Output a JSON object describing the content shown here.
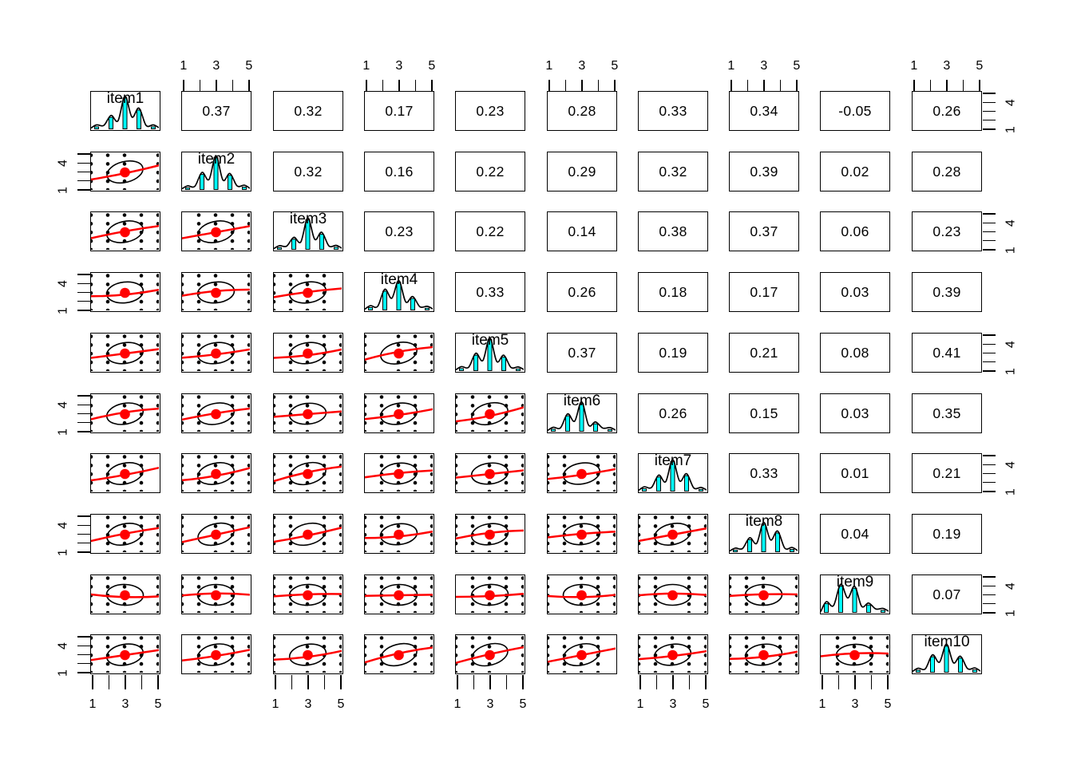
{
  "chart_data": {
    "type": "scatter-matrix",
    "title": "",
    "description": "pairs.panels correlation matrix: diagonal = histograms with density curves, upper triangle = Pearson correlations, lower triangle = scatterplots with correlation ellipse, red loess line and red mean point",
    "variables": [
      "item1",
      "item2",
      "item3",
      "item4",
      "item5",
      "item6",
      "item7",
      "item8",
      "item9",
      "item10"
    ],
    "correlations_upper": [
      [
        0.37,
        0.32,
        0.17,
        0.23,
        0.28,
        0.33,
        0.34,
        -0.05,
        0.26
      ],
      [
        0.32,
        0.16,
        0.22,
        0.29,
        0.32,
        0.39,
        0.02,
        0.28
      ],
      [
        0.23,
        0.22,
        0.14,
        0.38,
        0.37,
        0.06,
        0.23
      ],
      [
        0.33,
        0.26,
        0.18,
        0.17,
        0.03,
        0.39
      ],
      [
        0.37,
        0.19,
        0.21,
        0.08,
        0.41
      ],
      [
        0.26,
        0.15,
        0.03,
        0.35
      ],
      [
        0.33,
        0.01,
        0.21
      ],
      [
        0.04,
        0.19
      ],
      [
        0.07
      ]
    ],
    "histogram_heights": [
      [
        0.06,
        0.34,
        0.92,
        0.56,
        0.06
      ],
      [
        0.05,
        0.45,
        0.95,
        0.42,
        0.07
      ],
      [
        0.05,
        0.3,
        0.88,
        0.45,
        0.06
      ],
      [
        0.07,
        0.56,
        0.82,
        0.34,
        0.05
      ],
      [
        0.06,
        0.46,
        0.92,
        0.4,
        0.05
      ],
      [
        0.06,
        0.46,
        0.82,
        0.22,
        0.05
      ],
      [
        0.07,
        0.42,
        0.88,
        0.46,
        0.05
      ],
      [
        0.05,
        0.36,
        0.82,
        0.56,
        0.07
      ],
      [
        0.26,
        0.78,
        0.72,
        0.22,
        0.06
      ],
      [
        0.06,
        0.46,
        0.78,
        0.42,
        0.07
      ]
    ],
    "x_axis": {
      "range": [
        1,
        5
      ],
      "ticks": [
        1,
        2,
        3,
        4,
        5
      ],
      "labels": [
        "1",
        "3",
        "5"
      ],
      "label_tick_indexes": [
        0,
        2,
        4
      ],
      "top_axis_columns": [
        2,
        4,
        6,
        8,
        10
      ],
      "bottom_axis_columns": [
        1,
        3,
        5,
        7,
        9
      ]
    },
    "y_axis": {
      "range": [
        1,
        5
      ],
      "ticks": [
        1,
        2,
        3,
        4,
        5
      ],
      "labels": [
        "4",
        "1"
      ],
      "label_tick_indexes": [
        1,
        4
      ],
      "left_axis_rows": [
        2,
        4,
        6,
        8,
        10
      ],
      "right_axis_rows": [
        1,
        3,
        5,
        7,
        9
      ]
    },
    "legend": null,
    "grid": false,
    "colors": {
      "background": "#ffffff",
      "frame": "#000000",
      "text": "#000000",
      "points": "#000000",
      "ellipse": "#000000",
      "histogram_fill": "#00ffff",
      "density_curve": "#000000",
      "fit_line": "#ff0000",
      "mean_point": "#ff0000"
    }
  }
}
